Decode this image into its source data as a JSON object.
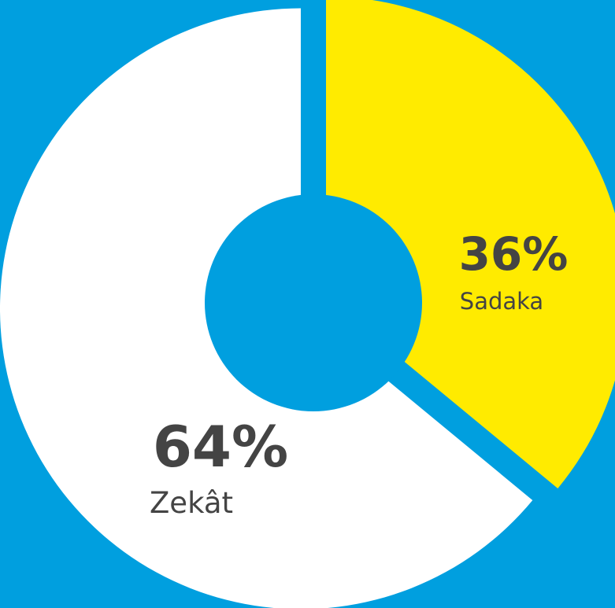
{
  "chart_data": {
    "type": "pie",
    "donut": true,
    "categories": [
      "Sadaka",
      "Zekât"
    ],
    "values": [
      36,
      64
    ],
    "value_labels": [
      "36%",
      "64%"
    ],
    "colors": [
      "#ffeb00",
      "#ffffff"
    ],
    "background": "#009fdf"
  }
}
